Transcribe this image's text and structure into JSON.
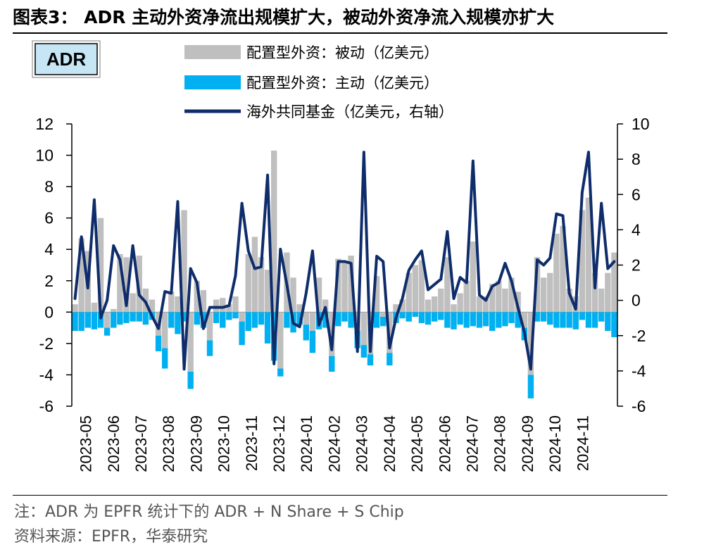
{
  "header": {
    "title": "图表3： ADR 主动外资净流出规模扩大，被动外资净流入规模亦扩大"
  },
  "footer": {
    "note": "注：ADR 为 EPFR 统计下的 ADR + N Share + S Chip",
    "source": "资料来源：EPFR，华泰研究"
  },
  "chart_data": {
    "type": "bar",
    "label_box": "ADR",
    "legend": {
      "passive": "配置型外资：被动（亿美元）",
      "active": "配置型外资：主动（亿美元）",
      "overseas": "海外共同基金（亿美元，右轴）"
    },
    "colors": {
      "passive": "#BFBFBF",
      "active": "#00B0F0",
      "overseas": "#0F2D6B"
    },
    "left_axis": {
      "min": -6,
      "max": 12,
      "ticks": [
        "12",
        "10",
        "8",
        "6",
        "4",
        "2",
        "0",
        "-2",
        "-4",
        "-6"
      ]
    },
    "right_axis": {
      "min": -6,
      "max": 10,
      "ticks": [
        "10",
        "8",
        "6",
        "4",
        "2",
        "0",
        "-2",
        "-4",
        "-6"
      ]
    },
    "x_labels": [
      "2023-05",
      "2023-06",
      "2023-07",
      "2023-08",
      "2023-09",
      "2023-10",
      "2023-11",
      "2023-12",
      "2024-01",
      "2024-02",
      "2024-03",
      "2024-04",
      "2024-05",
      "2024-06",
      "2024-07",
      "2024-08",
      "2024-09",
      "2024-10",
      "2024-11"
    ],
    "weeks_per_label": 4.3,
    "series": [
      {
        "key": "passive",
        "name": "配置型外资：被动（亿美元）",
        "axis": "left",
        "values": [
          0.5,
          4.7,
          3.9,
          0.6,
          6.0,
          -1.0,
          0.2,
          3.7,
          3.5,
          1.2,
          3.6,
          1.5,
          0.8,
          -1.5,
          -2.3,
          1.3,
          1.0,
          6.5,
          -3.8,
          2.0,
          1.4,
          -1.8,
          0.8,
          0.9,
          0.5,
          1.0,
          -0.6,
          3.7,
          4.8,
          3.5,
          2.7,
          10.3,
          -3.6,
          3.8,
          2.2,
          0.5,
          -0.8,
          -1.2,
          2.2,
          0.8,
          -2.8,
          3.4,
          3.2,
          3.6,
          -1.2,
          -2.1,
          -2.7,
          2.3,
          -0.3,
          -2.6,
          0.5,
          0.8,
          2.5,
          3.0,
          3.3,
          0.8,
          1.0,
          1.5,
          3.5,
          0.5,
          1.2,
          2.0,
          4.5,
          1.0,
          1.0,
          1.8,
          2.0,
          1.5,
          2.2,
          1.3,
          -1.0,
          -4.0,
          3.5,
          2.2,
          2.5,
          5.0,
          5.5,
          1.5,
          1.0,
          6.5,
          7.3,
          2.5,
          1.5,
          2.5,
          3.8
        ]
      },
      {
        "key": "active",
        "name": "配置型外资：主动（亿美元）",
        "axis": "left",
        "values": [
          -1.2,
          -1.2,
          -1.0,
          -1.1,
          -1.0,
          -0.5,
          -1.0,
          -0.8,
          -0.7,
          -0.6,
          -0.6,
          -0.8,
          -0.5,
          -1.0,
          -1.3,
          -1.0,
          -1.4,
          -0.6,
          -1.1,
          -0.8,
          -1.0,
          -1.0,
          -0.7,
          -1.0,
          -0.5,
          -0.4,
          -1.5,
          -1.2,
          -1.0,
          -0.8,
          -2.0,
          -3.1,
          -0.5,
          -1.0,
          -1.3,
          -0.8,
          -1.0,
          -1.4,
          -1.1,
          -1.0,
          -1.0,
          -0.9,
          -0.6,
          -1.0,
          -1.1,
          -0.8,
          -0.7,
          -1.0,
          -0.6,
          -0.8,
          -0.7,
          -0.4,
          -0.6,
          -0.3,
          -0.7,
          -0.8,
          -0.6,
          -0.5,
          -1.0,
          -1.1,
          -0.8,
          -1.0,
          -0.9,
          -1.0,
          -0.9,
          -1.2,
          -1.0,
          -0.9,
          -0.7,
          -1.0,
          -0.8,
          -1.5,
          -0.6,
          -0.6,
          -0.8,
          -1.0,
          -1.0,
          -1.0,
          -1.1,
          -0.5,
          -1.0,
          -1.0,
          -0.6,
          -1.2,
          -1.6
        ]
      },
      {
        "key": "overseas",
        "name": "海外共同基金（亿美元，右轴）",
        "axis": "right",
        "values": [
          0.1,
          3.6,
          0.7,
          5.7,
          -1.0,
          0.0,
          3.1,
          2.3,
          -0.3,
          3.1,
          0.3,
          -0.1,
          -0.9,
          -1.6,
          0.5,
          0.4,
          5.6,
          -3.9,
          1.8,
          1.0,
          -1.6,
          -0.4,
          -0.4,
          -0.4,
          -0.3,
          1.4,
          5.5,
          2.8,
          1.8,
          1.9,
          7.1,
          -3.6,
          2.9,
          0.9,
          -1.3,
          -1.5,
          0.4,
          2.8,
          -1.4,
          -0.4,
          -2.8,
          2.2,
          2.2,
          2.1,
          -2.9,
          8.4,
          -2.9,
          2.5,
          2.2,
          -2.7,
          -1.0,
          0.1,
          1.7,
          2.3,
          2.8,
          0.6,
          0.9,
          1.2,
          3.9,
          0.1,
          1.3,
          1.0,
          7.9,
          0.3,
          0.0,
          0.8,
          1.0,
          2.1,
          1.1,
          -0.4,
          -1.8,
          -3.9,
          2.3,
          2.0,
          2.4,
          4.9,
          4.8,
          0.4,
          -0.5,
          6.1,
          8.4,
          0.7,
          5.5,
          1.8,
          2.2
        ]
      }
    ]
  }
}
